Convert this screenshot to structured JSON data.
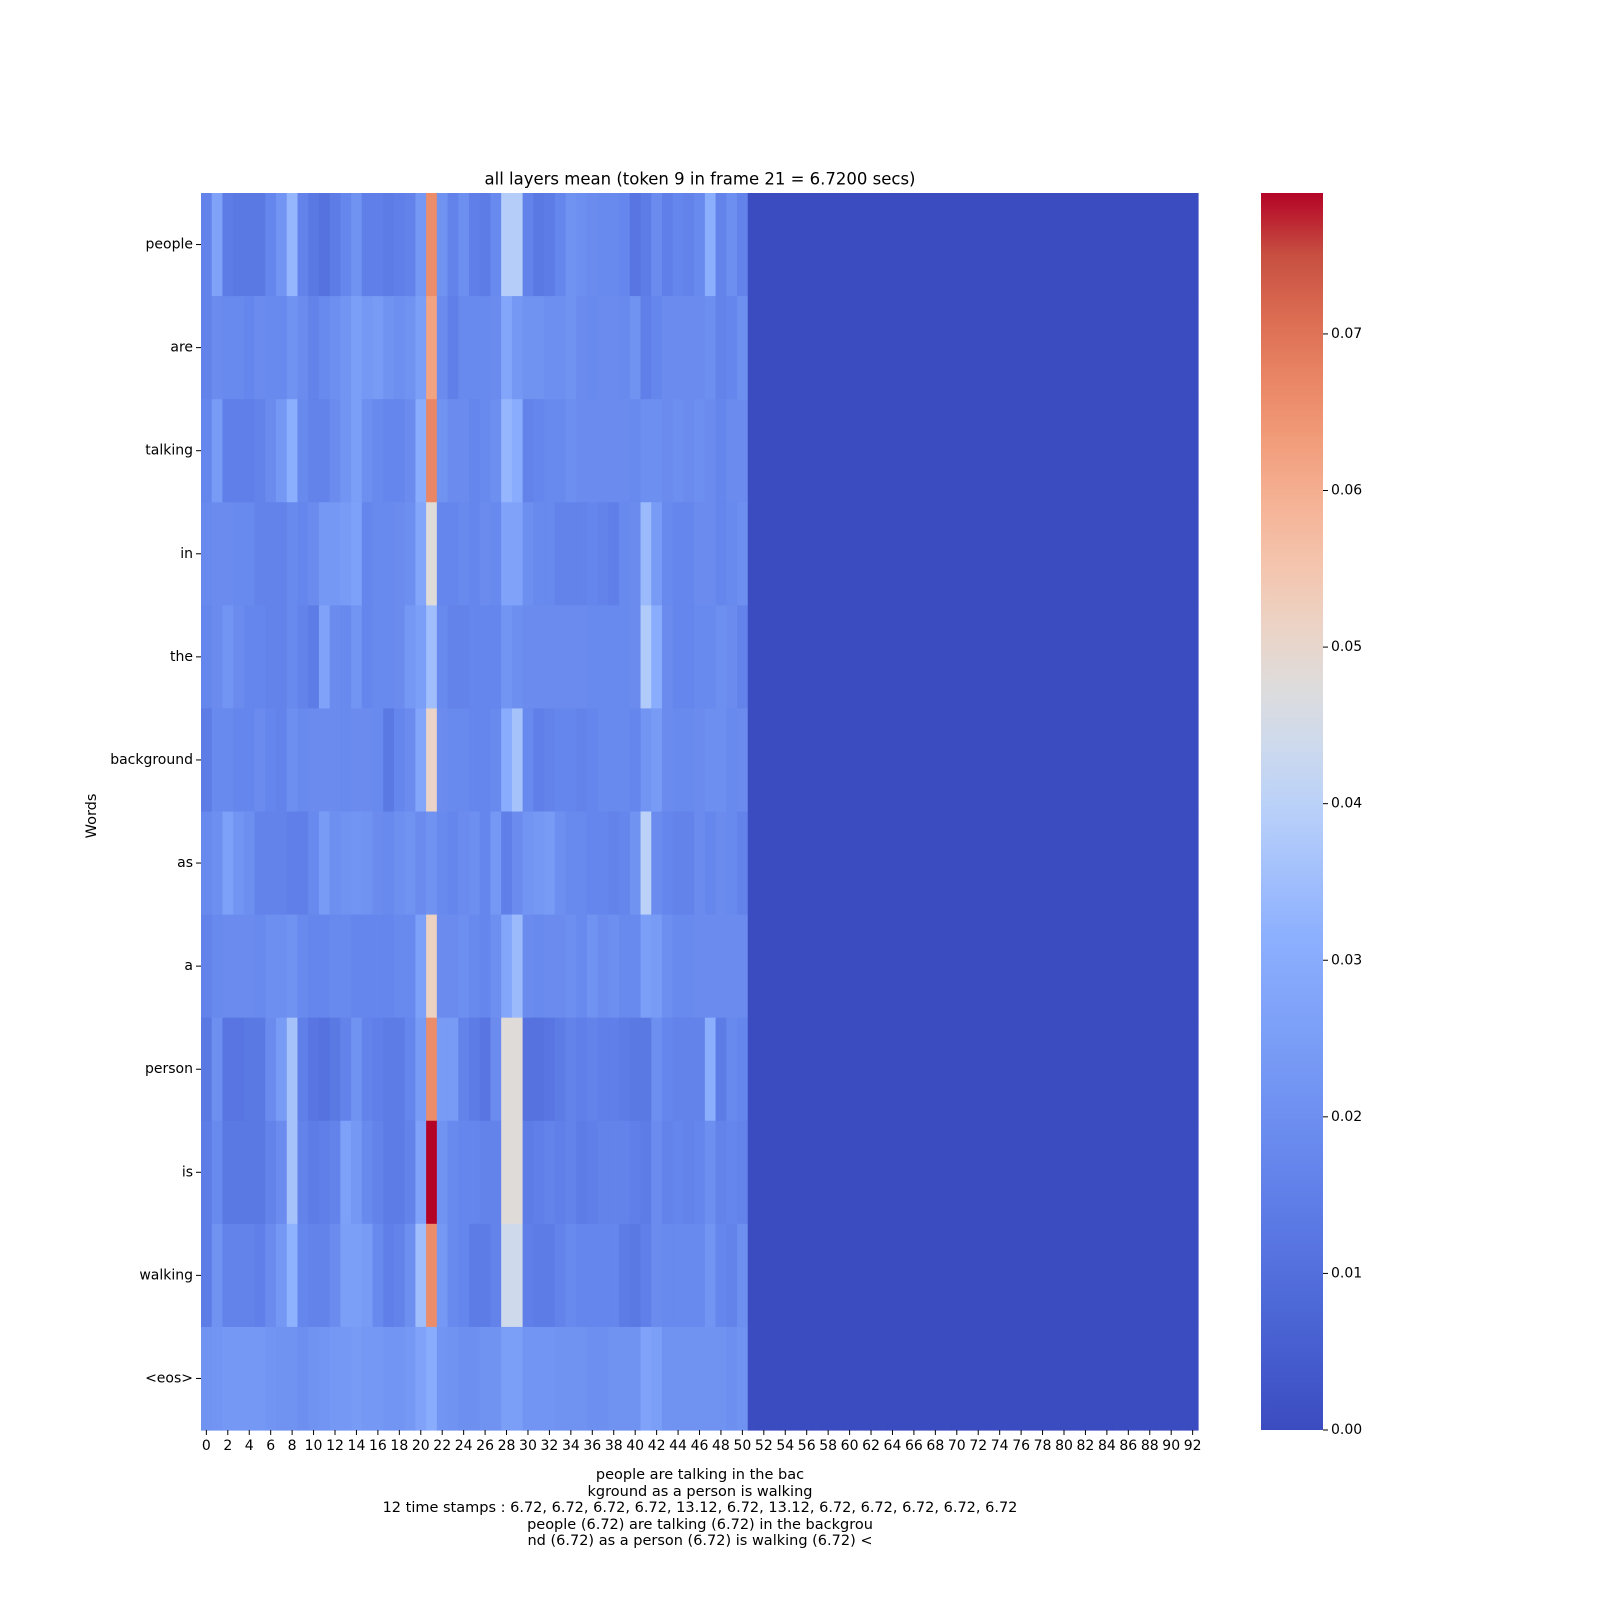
{
  "chart_data": {
    "type": "heatmap",
    "title": "all layers mean (token 9 in frame 21  = 6.7200 secs)",
    "ylabel": "Words",
    "xlabel": "",
    "y_labels": [
      "people",
      "are",
      "talking",
      "in",
      "the",
      "background",
      "as",
      "a",
      "person",
      "is",
      "walking",
      "<eos>"
    ],
    "x_tick_labels": [
      "0",
      "2",
      "4",
      "6",
      "8",
      "10",
      "12",
      "14",
      "16",
      "18",
      "20",
      "22",
      "24",
      "26",
      "28",
      "30",
      "32",
      "34",
      "36",
      "38",
      "40",
      "42",
      "44",
      "46",
      "48",
      "50",
      "52",
      "54",
      "56",
      "58",
      "60",
      "62",
      "64",
      "66",
      "68",
      "70",
      "72",
      "74",
      "76",
      "78",
      "80",
      "82",
      "84",
      "86",
      "88",
      "90",
      "92"
    ],
    "n_columns": 93,
    "colormap": "coolwarm",
    "vmin": 0.0,
    "vmax": 0.079,
    "colorbar_ticks": [
      "0.00",
      "0.01",
      "0.02",
      "0.03",
      "0.04",
      "0.05",
      "0.06",
      "0.07"
    ],
    "colorbar_tick_values": [
      0.0,
      0.01,
      0.02,
      0.03,
      0.04,
      0.05,
      0.06,
      0.07
    ],
    "values": [
      [
        0.016,
        0.027,
        0.014,
        0.013,
        0.013,
        0.013,
        0.017,
        0.022,
        0.033,
        0.016,
        0.013,
        0.011,
        0.014,
        0.017,
        0.021,
        0.015,
        0.015,
        0.014,
        0.015,
        0.016,
        0.023,
        0.066,
        0.021,
        0.016,
        0.02,
        0.015,
        0.014,
        0.018,
        0.039,
        0.039,
        0.016,
        0.013,
        0.014,
        0.017,
        0.021,
        0.02,
        0.019,
        0.018,
        0.018,
        0.017,
        0.012,
        0.014,
        0.019,
        0.015,
        0.017,
        0.016,
        0.018,
        0.031,
        0.016,
        0.02,
        0.016,
        0,
        0,
        0,
        0,
        0,
        0,
        0,
        0,
        0,
        0,
        0,
        0,
        0,
        0,
        0,
        0,
        0,
        0,
        0,
        0,
        0,
        0,
        0,
        0,
        0,
        0,
        0,
        0,
        0,
        0,
        0,
        0,
        0,
        0,
        0,
        0,
        0,
        0,
        0,
        0,
        0,
        0
      ],
      [
        0.016,
        0.019,
        0.018,
        0.018,
        0.017,
        0.019,
        0.018,
        0.018,
        0.021,
        0.019,
        0.016,
        0.018,
        0.02,
        0.022,
        0.025,
        0.023,
        0.024,
        0.021,
        0.02,
        0.021,
        0.025,
        0.062,
        0.019,
        0.015,
        0.018,
        0.018,
        0.018,
        0.019,
        0.028,
        0.023,
        0.021,
        0.021,
        0.02,
        0.02,
        0.021,
        0.019,
        0.018,
        0.019,
        0.019,
        0.018,
        0.021,
        0.015,
        0.017,
        0.019,
        0.019,
        0.019,
        0.019,
        0.02,
        0.016,
        0.017,
        0.02,
        0,
        0,
        0,
        0,
        0,
        0,
        0,
        0,
        0,
        0,
        0,
        0,
        0,
        0,
        0,
        0,
        0,
        0,
        0,
        0,
        0,
        0,
        0,
        0,
        0,
        0,
        0,
        0,
        0,
        0,
        0,
        0,
        0,
        0,
        0,
        0,
        0,
        0,
        0,
        0,
        0,
        0
      ],
      [
        0.017,
        0.024,
        0.015,
        0.015,
        0.015,
        0.016,
        0.019,
        0.023,
        0.031,
        0.018,
        0.016,
        0.016,
        0.019,
        0.022,
        0.025,
        0.02,
        0.018,
        0.017,
        0.017,
        0.019,
        0.03,
        0.067,
        0.021,
        0.019,
        0.019,
        0.017,
        0.018,
        0.02,
        0.033,
        0.03,
        0.016,
        0.017,
        0.018,
        0.018,
        0.02,
        0.019,
        0.019,
        0.019,
        0.019,
        0.019,
        0.018,
        0.02,
        0.02,
        0.019,
        0.02,
        0.019,
        0.02,
        0.019,
        0.017,
        0.019,
        0.019,
        0,
        0,
        0,
        0,
        0,
        0,
        0,
        0,
        0,
        0,
        0,
        0,
        0,
        0,
        0,
        0,
        0,
        0,
        0,
        0,
        0,
        0,
        0,
        0,
        0,
        0,
        0,
        0,
        0,
        0,
        0,
        0,
        0,
        0,
        0,
        0,
        0,
        0,
        0,
        0,
        0,
        0
      ],
      [
        0.018,
        0.019,
        0.019,
        0.018,
        0.018,
        0.016,
        0.016,
        0.016,
        0.018,
        0.017,
        0.019,
        0.023,
        0.023,
        0.024,
        0.026,
        0.017,
        0.018,
        0.018,
        0.019,
        0.02,
        0.028,
        0.048,
        0.017,
        0.017,
        0.018,
        0.017,
        0.019,
        0.018,
        0.027,
        0.027,
        0.02,
        0.018,
        0.018,
        0.016,
        0.016,
        0.016,
        0.017,
        0.016,
        0.015,
        0.018,
        0.019,
        0.034,
        0.024,
        0.018,
        0.017,
        0.017,
        0.019,
        0.019,
        0.017,
        0.018,
        0.02,
        0,
        0,
        0,
        0,
        0,
        0,
        0,
        0,
        0,
        0,
        0,
        0,
        0,
        0,
        0,
        0,
        0,
        0,
        0,
        0,
        0,
        0,
        0,
        0,
        0,
        0,
        0,
        0,
        0,
        0,
        0,
        0,
        0,
        0,
        0,
        0,
        0,
        0,
        0,
        0,
        0,
        0
      ],
      [
        0.017,
        0.019,
        0.022,
        0.019,
        0.017,
        0.017,
        0.016,
        0.016,
        0.018,
        0.016,
        0.014,
        0.027,
        0.019,
        0.018,
        0.022,
        0.017,
        0.018,
        0.018,
        0.019,
        0.023,
        0.025,
        0.035,
        0.018,
        0.016,
        0.016,
        0.017,
        0.017,
        0.017,
        0.022,
        0.02,
        0.019,
        0.019,
        0.019,
        0.019,
        0.019,
        0.019,
        0.018,
        0.018,
        0.018,
        0.018,
        0.019,
        0.038,
        0.03,
        0.019,
        0.017,
        0.017,
        0.018,
        0.018,
        0.02,
        0.019,
        0.016,
        0,
        0,
        0,
        0,
        0,
        0,
        0,
        0,
        0,
        0,
        0,
        0,
        0,
        0,
        0,
        0,
        0,
        0,
        0,
        0,
        0,
        0,
        0,
        0,
        0,
        0,
        0,
        0,
        0,
        0,
        0,
        0,
        0,
        0,
        0,
        0,
        0,
        0,
        0,
        0,
        0,
        0
      ],
      [
        0.014,
        0.018,
        0.018,
        0.017,
        0.017,
        0.019,
        0.017,
        0.016,
        0.02,
        0.018,
        0.019,
        0.019,
        0.019,
        0.018,
        0.019,
        0.019,
        0.018,
        0.013,
        0.017,
        0.019,
        0.028,
        0.051,
        0.019,
        0.018,
        0.018,
        0.017,
        0.017,
        0.018,
        0.03,
        0.036,
        0.018,
        0.015,
        0.016,
        0.017,
        0.017,
        0.016,
        0.017,
        0.018,
        0.018,
        0.018,
        0.017,
        0.022,
        0.024,
        0.019,
        0.018,
        0.018,
        0.019,
        0.02,
        0.02,
        0.018,
        0.019,
        0,
        0,
        0,
        0,
        0,
        0,
        0,
        0,
        0,
        0,
        0,
        0,
        0,
        0,
        0,
        0,
        0,
        0,
        0,
        0,
        0,
        0,
        0,
        0,
        0,
        0,
        0,
        0,
        0,
        0,
        0,
        0,
        0,
        0,
        0,
        0,
        0,
        0,
        0,
        0,
        0,
        0
      ],
      [
        0.018,
        0.02,
        0.026,
        0.022,
        0.02,
        0.016,
        0.016,
        0.016,
        0.015,
        0.015,
        0.018,
        0.024,
        0.02,
        0.021,
        0.022,
        0.021,
        0.019,
        0.018,
        0.02,
        0.021,
        0.019,
        0.021,
        0.018,
        0.017,
        0.019,
        0.02,
        0.017,
        0.023,
        0.015,
        0.019,
        0.022,
        0.023,
        0.024,
        0.02,
        0.018,
        0.018,
        0.017,
        0.017,
        0.016,
        0.017,
        0.021,
        0.04,
        0.019,
        0.017,
        0.016,
        0.016,
        0.019,
        0.017,
        0.019,
        0.018,
        0.016,
        0,
        0,
        0,
        0,
        0,
        0,
        0,
        0,
        0,
        0,
        0,
        0,
        0,
        0,
        0,
        0,
        0,
        0,
        0,
        0,
        0,
        0,
        0,
        0,
        0,
        0,
        0,
        0,
        0,
        0,
        0,
        0,
        0,
        0,
        0,
        0,
        0,
        0,
        0,
        0,
        0,
        0
      ],
      [
        0.016,
        0.018,
        0.019,
        0.019,
        0.019,
        0.018,
        0.02,
        0.02,
        0.021,
        0.018,
        0.017,
        0.017,
        0.018,
        0.018,
        0.017,
        0.017,
        0.017,
        0.017,
        0.018,
        0.018,
        0.026,
        0.052,
        0.019,
        0.019,
        0.02,
        0.018,
        0.017,
        0.02,
        0.028,
        0.034,
        0.019,
        0.018,
        0.019,
        0.019,
        0.02,
        0.018,
        0.021,
        0.019,
        0.02,
        0.018,
        0.018,
        0.025,
        0.024,
        0.02,
        0.018,
        0.018,
        0.019,
        0.019,
        0.019,
        0.019,
        0.019,
        0,
        0,
        0,
        0,
        0,
        0,
        0,
        0,
        0,
        0,
        0,
        0,
        0,
        0,
        0,
        0,
        0,
        0,
        0,
        0,
        0,
        0,
        0,
        0,
        0,
        0,
        0,
        0,
        0,
        0,
        0,
        0,
        0,
        0,
        0,
        0,
        0,
        0,
        0,
        0,
        0,
        0
      ],
      [
        0.013,
        0.02,
        0.012,
        0.012,
        0.013,
        0.013,
        0.019,
        0.024,
        0.036,
        0.015,
        0.012,
        0.011,
        0.013,
        0.016,
        0.021,
        0.016,
        0.015,
        0.014,
        0.014,
        0.017,
        0.024,
        0.066,
        0.024,
        0.024,
        0.016,
        0.014,
        0.012,
        0.019,
        0.048,
        0.048,
        0.011,
        0.011,
        0.012,
        0.014,
        0.016,
        0.015,
        0.016,
        0.015,
        0.015,
        0.014,
        0.013,
        0.013,
        0.02,
        0.017,
        0.016,
        0.016,
        0.016,
        0.031,
        0.014,
        0.018,
        0.017,
        0,
        0,
        0,
        0,
        0,
        0,
        0,
        0,
        0,
        0,
        0,
        0,
        0,
        0,
        0,
        0,
        0,
        0,
        0,
        0,
        0,
        0,
        0,
        0,
        0,
        0,
        0,
        0,
        0,
        0,
        0,
        0,
        0,
        0,
        0,
        0,
        0,
        0,
        0,
        0,
        0,
        0
      ],
      [
        0.014,
        0.018,
        0.013,
        0.013,
        0.013,
        0.013,
        0.016,
        0.019,
        0.036,
        0.016,
        0.014,
        0.015,
        0.016,
        0.026,
        0.023,
        0.018,
        0.016,
        0.014,
        0.014,
        0.016,
        0.027,
        0.079,
        0.021,
        0.018,
        0.017,
        0.017,
        0.016,
        0.016,
        0.048,
        0.048,
        0.014,
        0.015,
        0.016,
        0.015,
        0.016,
        0.014,
        0.015,
        0.016,
        0.016,
        0.016,
        0.015,
        0.014,
        0.019,
        0.016,
        0.017,
        0.016,
        0.017,
        0.02,
        0.016,
        0.017,
        0.016,
        0,
        0,
        0,
        0,
        0,
        0,
        0,
        0,
        0,
        0,
        0,
        0,
        0,
        0,
        0,
        0,
        0,
        0,
        0,
        0,
        0,
        0,
        0,
        0,
        0,
        0,
        0,
        0,
        0,
        0,
        0,
        0,
        0,
        0,
        0,
        0,
        0,
        0,
        0,
        0,
        0,
        0
      ],
      [
        0.014,
        0.021,
        0.016,
        0.016,
        0.016,
        0.015,
        0.019,
        0.023,
        0.032,
        0.017,
        0.016,
        0.016,
        0.019,
        0.025,
        0.025,
        0.024,
        0.018,
        0.015,
        0.016,
        0.02,
        0.035,
        0.066,
        0.023,
        0.018,
        0.017,
        0.014,
        0.014,
        0.016,
        0.044,
        0.044,
        0.015,
        0.014,
        0.014,
        0.016,
        0.018,
        0.017,
        0.017,
        0.017,
        0.017,
        0.014,
        0.013,
        0.015,
        0.019,
        0.018,
        0.018,
        0.018,
        0.018,
        0.022,
        0.017,
        0.016,
        0.02,
        0,
        0,
        0,
        0,
        0,
        0,
        0,
        0,
        0,
        0,
        0,
        0,
        0,
        0,
        0,
        0,
        0,
        0,
        0,
        0,
        0,
        0,
        0,
        0,
        0,
        0,
        0,
        0,
        0,
        0,
        0,
        0,
        0,
        0,
        0,
        0,
        0,
        0,
        0,
        0,
        0,
        0
      ],
      [
        0.021,
        0.022,
        0.023,
        0.023,
        0.023,
        0.023,
        0.022,
        0.021,
        0.021,
        0.02,
        0.021,
        0.022,
        0.023,
        0.023,
        0.024,
        0.023,
        0.023,
        0.022,
        0.022,
        0.023,
        0.027,
        0.03,
        0.022,
        0.021,
        0.02,
        0.02,
        0.021,
        0.021,
        0.025,
        0.025,
        0.022,
        0.022,
        0.022,
        0.021,
        0.021,
        0.021,
        0.02,
        0.02,
        0.021,
        0.021,
        0.021,
        0.027,
        0.025,
        0.021,
        0.021,
        0.021,
        0.021,
        0.021,
        0.021,
        0.02,
        0.021,
        0,
        0,
        0,
        0,
        0,
        0,
        0,
        0,
        0,
        0,
        0,
        0,
        0,
        0,
        0,
        0,
        0,
        0,
        0,
        0,
        0,
        0,
        0,
        0,
        0,
        0,
        0,
        0,
        0,
        0,
        0,
        0,
        0,
        0,
        0,
        0,
        0,
        0,
        0,
        0,
        0,
        0
      ]
    ]
  },
  "caption": {
    "lines": [
      "people are talking in the bac",
      "kground as a person is walking",
      "12 time stamps : 6.72, 6.72, 6.72, 6.72, 13.12, 6.72, 13.12, 6.72, 6.72, 6.72, 6.72, 6.72",
      "people (6.72) are talking (6.72) in the backgrou",
      "nd (6.72) as a person (6.72) is walking (6.72) <"
    ]
  }
}
